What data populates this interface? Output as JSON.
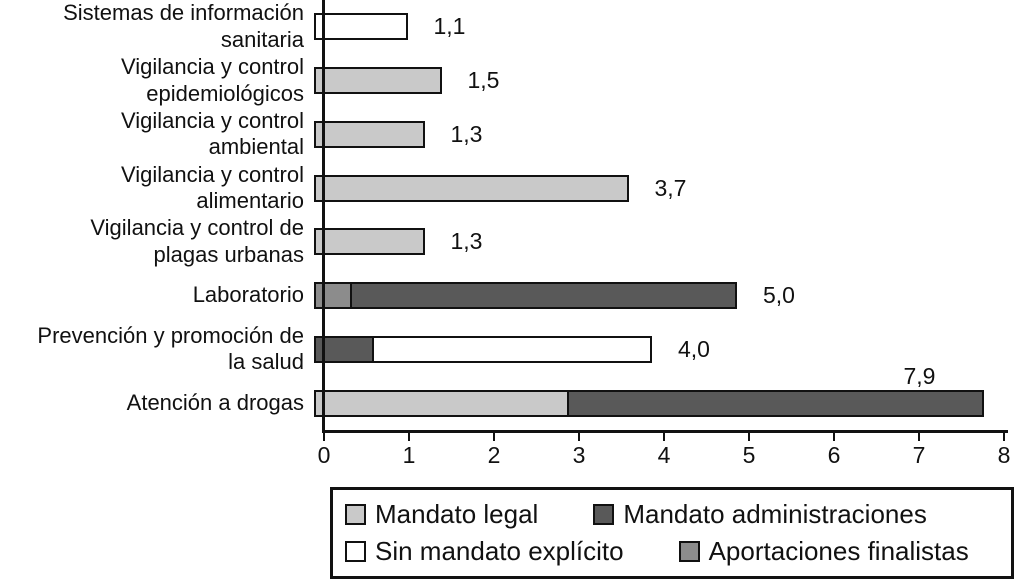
{
  "chart_data": {
    "type": "bar",
    "orientation": "horizontal",
    "title": "",
    "xlabel": "",
    "ylabel": "",
    "xlim": [
      0,
      8
    ],
    "x_ticks": [
      "0",
      "1",
      "2",
      "3",
      "4",
      "5",
      "6",
      "7",
      "8"
    ],
    "grid": false,
    "legend_position": "bottom",
    "series_colors": {
      "Mandato legal": "#c9c9c9",
      "Mandato administraciones": "#595959",
      "Sin mandato explícito": "#ffffff",
      "Aportaciones finalistas": "#8c8c8c"
    },
    "legend": [
      {
        "label": "Mandato legal",
        "color": "#c9c9c9"
      },
      {
        "label": "Mandato administraciones",
        "color": "#595959"
      },
      {
        "label": "Sin mandato explícito",
        "color": "#ffffff"
      },
      {
        "label": "Aportaciones finalistas",
        "color": "#8c8c8c"
      }
    ],
    "rows": [
      {
        "label_lines": [
          "Sistemas de información",
          "sanitaria"
        ],
        "value_label": "1,1",
        "total": 1.1,
        "segments": [
          {
            "series": "Sin mandato explícito",
            "value": 1.1
          }
        ]
      },
      {
        "label_lines": [
          "Vigilancia y control",
          "epidemiológicos"
        ],
        "value_label": "1,5",
        "total": 1.5,
        "segments": [
          {
            "series": "Mandato legal",
            "value": 1.5
          }
        ]
      },
      {
        "label_lines": [
          "Vigilancia y control",
          "ambiental"
        ],
        "value_label": "1,3",
        "total": 1.3,
        "segments": [
          {
            "series": "Mandato legal",
            "value": 1.3
          }
        ]
      },
      {
        "label_lines": [
          "Vigilancia y control",
          "alimentario"
        ],
        "value_label": "3,7",
        "total": 3.7,
        "segments": [
          {
            "series": "Mandato legal",
            "value": 3.7
          }
        ]
      },
      {
        "label_lines": [
          "Vigilancia y control de",
          "plagas urbanas"
        ],
        "value_label": "1,3",
        "total": 1.3,
        "segments": [
          {
            "series": "Mandato legal",
            "value": 1.3
          }
        ]
      },
      {
        "label_lines": [
          "Laboratorio"
        ],
        "value_label": "5,0",
        "total": 5.0,
        "segments": [
          {
            "series": "Aportaciones finalistas",
            "value": 0.45
          },
          {
            "series": "Mandato administraciones",
            "value": 4.55
          }
        ]
      },
      {
        "label_lines": [
          "Prevención y promoción de",
          "la salud"
        ],
        "value_label": "4,0",
        "total": 4.0,
        "segments": [
          {
            "series": "Mandato administraciones",
            "value": 0.7
          },
          {
            "series": "Sin mandato explícito",
            "value": 3.3
          }
        ]
      },
      {
        "label_lines": [
          "Atención a drogas"
        ],
        "value_label": "7,9",
        "total": 7.9,
        "value_above": true,
        "segments": [
          {
            "series": "Mandato legal",
            "value": 3.0
          },
          {
            "series": "Mandato administraciones",
            "value": 4.9
          }
        ]
      }
    ]
  }
}
